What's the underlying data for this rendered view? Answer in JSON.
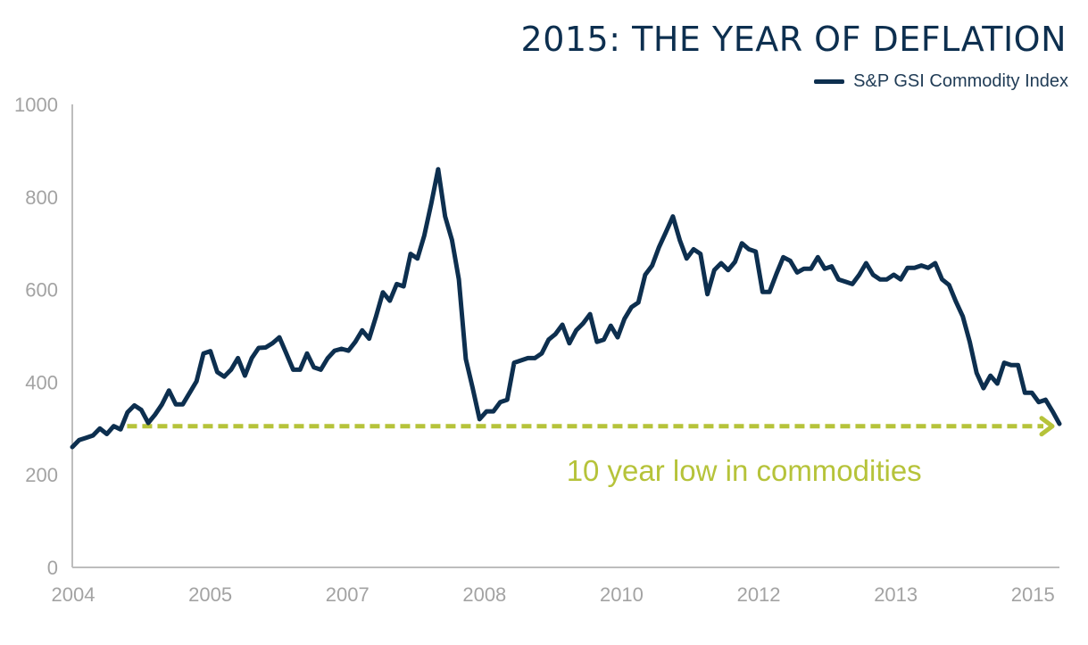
{
  "colors": {
    "series": "#0d2f4f",
    "annotation": "#b6c33a",
    "axis": "#bdbdbd",
    "tick_text": "#a3a3a3"
  },
  "chart_data": {
    "type": "line",
    "title": "2015: THE YEAR OF DEFLATION",
    "legend": {
      "position": "top-right",
      "entries": [
        "S&P GSI Commodity Index"
      ]
    },
    "xlabel": "",
    "ylabel": "",
    "ylim": [
      0,
      1000
    ],
    "yticks": [
      0,
      200,
      400,
      600,
      800,
      1000
    ],
    "xlim": [
      0,
      144
    ],
    "xticks": [
      {
        "label": "2004",
        "at": 0
      },
      {
        "label": "2005",
        "at": 20
      },
      {
        "label": "2007",
        "at": 40
      },
      {
        "label": "2008",
        "at": 60
      },
      {
        "label": "2010",
        "at": 80
      },
      {
        "label": "2012",
        "at": 100
      },
      {
        "label": "2013",
        "at": 120
      },
      {
        "label": "2015",
        "at": 140
      }
    ],
    "grid": false,
    "series": [
      {
        "name": "S&P GSI Commodity Index",
        "values": [
          260,
          275,
          280,
          285,
          300,
          288,
          305,
          298,
          335,
          350,
          340,
          312,
          330,
          352,
          382,
          352,
          352,
          377,
          402,
          462,
          467,
          422,
          412,
          427,
          452,
          414,
          452,
          474,
          475,
          484,
          497,
          462,
          427,
          427,
          462,
          432,
          427,
          452,
          468,
          472,
          468,
          487,
          512,
          494,
          542,
          594,
          576,
          612,
          607,
          677,
          667,
          717,
          786,
          860,
          758,
          707,
          622,
          450,
          387,
          320,
          337,
          337,
          357,
          362,
          442,
          447,
          452,
          452,
          462,
          492,
          504,
          524,
          484,
          512,
          527,
          547,
          487,
          492,
          522,
          497,
          537,
          562,
          572,
          632,
          652,
          692,
          724,
          758,
          707,
          667,
          687,
          677,
          590,
          642,
          657,
          642,
          660,
          700,
          687,
          682,
          595,
          595,
          634,
          670,
          662,
          637,
          645,
          645,
          670,
          645,
          650,
          622,
          617,
          612,
          632,
          657,
          632,
          622,
          622,
          632,
          622,
          647,
          647,
          652,
          647,
          657,
          622,
          610,
          574,
          542,
          487,
          420,
          387,
          414,
          397,
          442,
          437,
          437,
          377,
          377,
          357,
          362,
          337,
          310
        ]
      }
    ],
    "annotations": [
      {
        "type": "dashed-arrow",
        "y": 305,
        "x_start": 8,
        "x_end": 144
      },
      {
        "type": "text",
        "text": "10 year low in commodities",
        "x": 98,
        "y": 210
      }
    ]
  }
}
